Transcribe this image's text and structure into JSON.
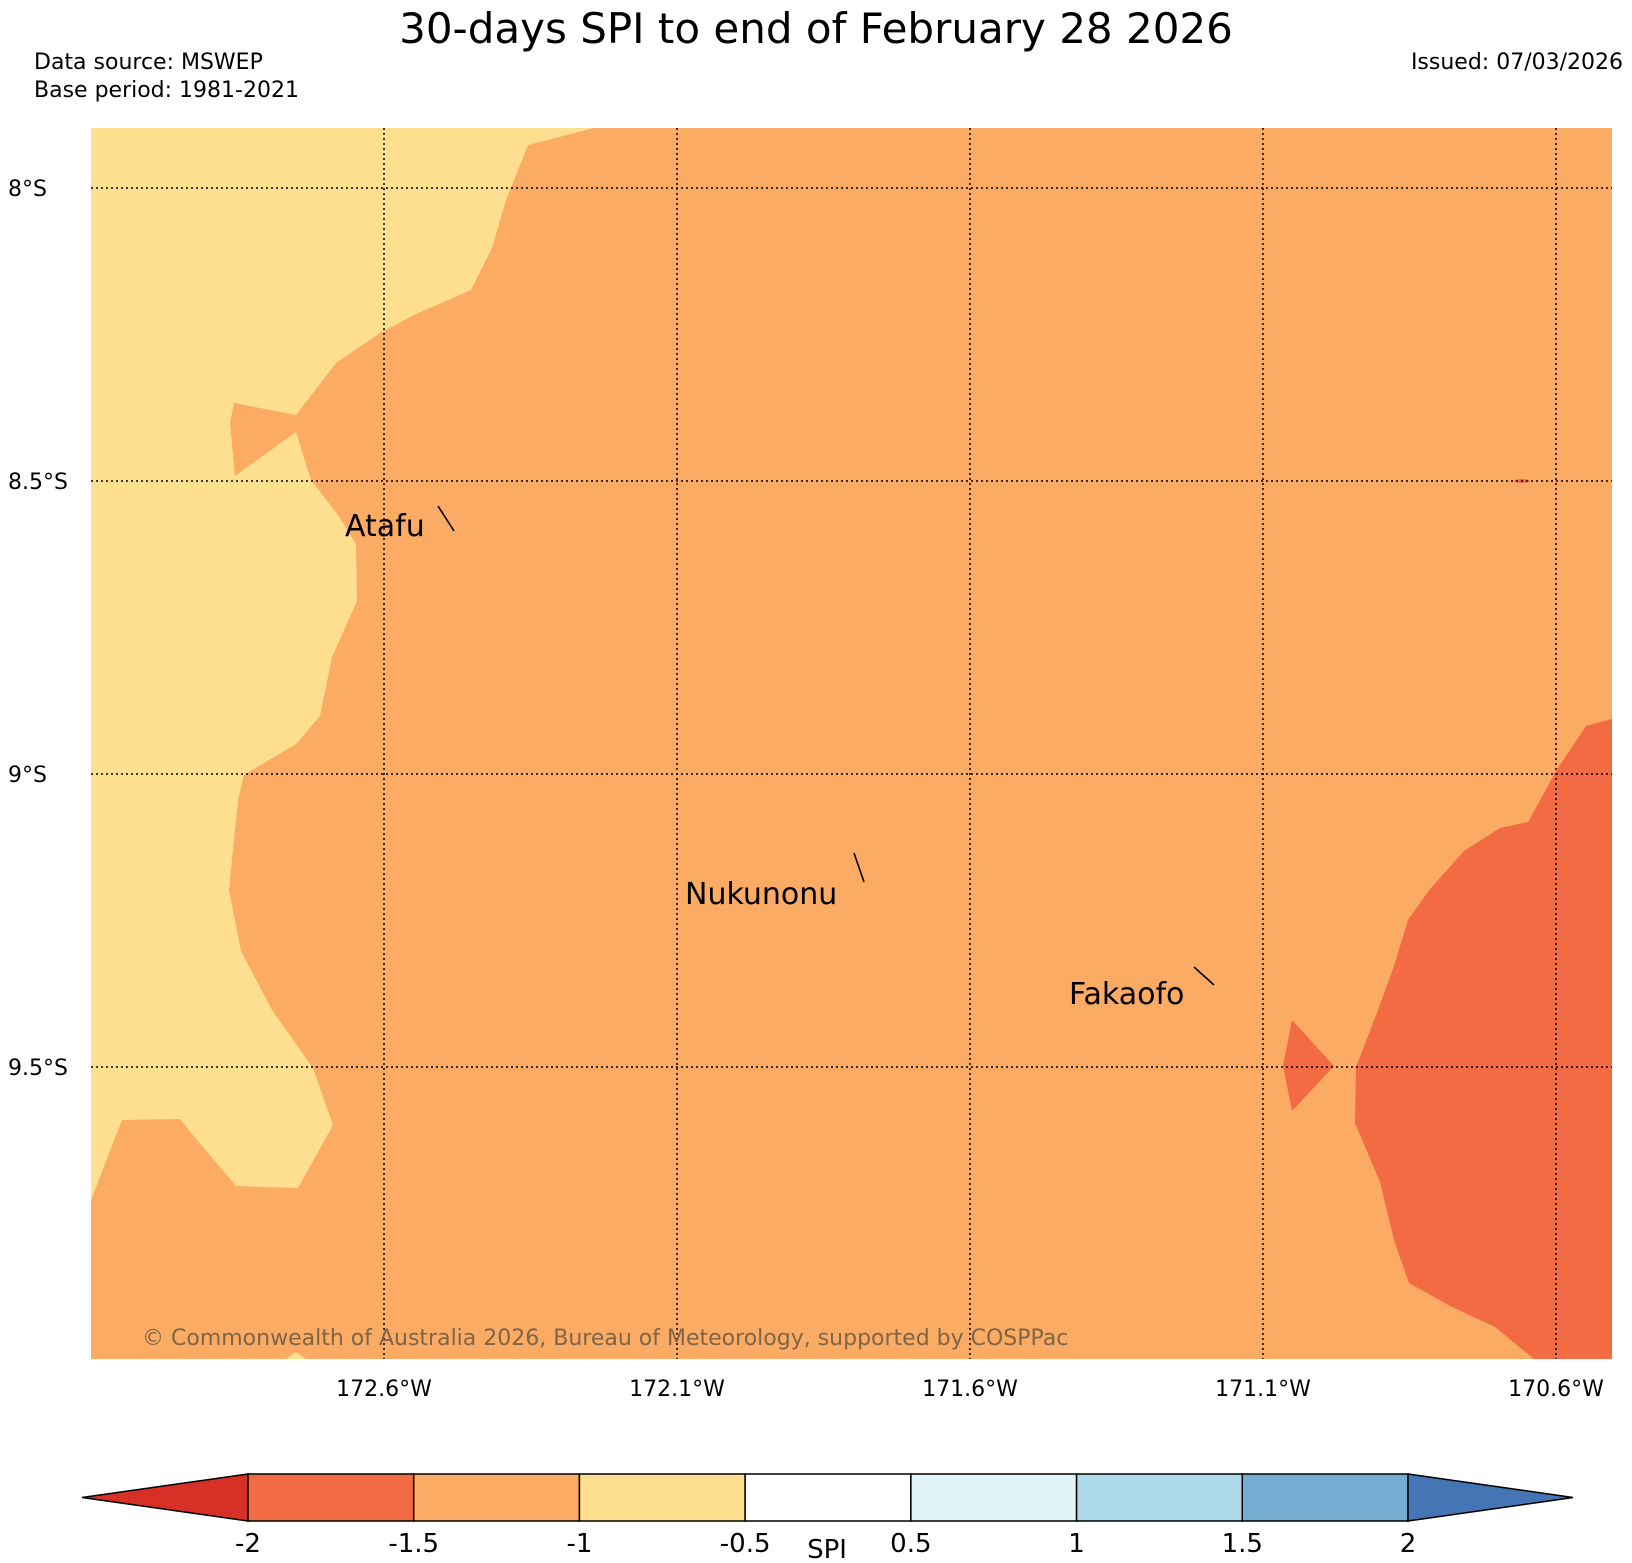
{
  "title": "30-days SPI to end of February 28 2026",
  "data_source": "Data source: MSWEP",
  "base_period": "Base period: 1981-2021",
  "issued": "Issued: 07/03/2026",
  "map": {
    "lat_labels": [
      "8°S",
      "8.5°S",
      "9°S",
      "9.5°S"
    ],
    "lon_labels": [
      "172.6°W",
      "172.1°W",
      "171.6°W",
      "171.1°W",
      "170.6°W"
    ],
    "places": [
      "Atafu",
      "Nukunonu",
      "Fakaofo"
    ],
    "copyright": "© Commonwealth of Australia 2026, Bureau of Meteorology, supported by COSPPac",
    "categories": [
      {
        "range": "-2 to -1.5",
        "color": "#f26b43"
      },
      {
        "range": "-1.5 to -1",
        "color": "#fbab63"
      },
      {
        "range": "-1 to -0.5",
        "color": "#fedf8f"
      }
    ]
  },
  "colorbar": {
    "label": "SPI",
    "ticks": [
      "-2",
      "-1.5",
      "-1",
      "-0.5",
      "0.5",
      "1",
      "1.5",
      "2"
    ],
    "colors": [
      "#d73027",
      "#f26b43",
      "#fbab63",
      "#fedf8f",
      "#ffffff",
      "#e0f3f8",
      "#abd9e9",
      "#74add1",
      "#4575b4"
    ]
  }
}
